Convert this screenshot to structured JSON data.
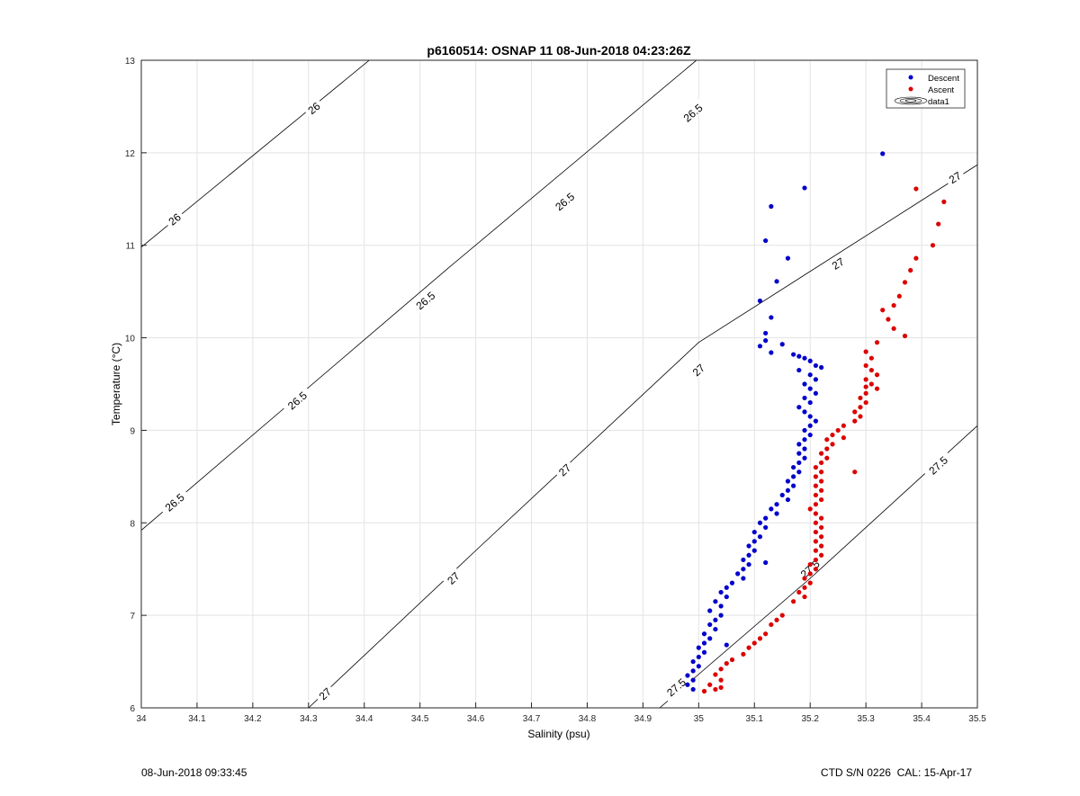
{
  "chart_data": {
    "type": "scatter",
    "title": "p6160514: OSNAP 11 08-Jun-2018 04:23:26Z",
    "xlabel": "Salinity (psu)",
    "ylabel": "Temperature (°C)",
    "xlim": [
      34,
      35.5
    ],
    "ylim": [
      6,
      13
    ],
    "xticks": [
      "34",
      "34.1",
      "34.2",
      "34.3",
      "34.4",
      "34.5",
      "34.6",
      "34.7",
      "34.8",
      "34.9",
      "35",
      "35.1",
      "35.2",
      "35.3",
      "35.4",
      "35.5"
    ],
    "yticks": [
      "6",
      "7",
      "8",
      "9",
      "10",
      "11",
      "12",
      "13"
    ],
    "grid": true,
    "legend_position": "top-right",
    "legend": [
      "Descent",
      "Ascent",
      "data1"
    ],
    "colors": {
      "descent": "#0000cc",
      "ascent": "#dd0000",
      "contour": "#000000",
      "grid": "#e3e3e3"
    },
    "contours": [
      {
        "label": "26",
        "points": [
          [
            34.0,
            10.98
          ],
          [
            34.5,
            13.45
          ]
        ],
        "label_positions": [
          [
            34.06,
            11.28
          ],
          [
            34.31,
            12.48
          ]
        ]
      },
      {
        "label": "26.5",
        "points": [
          [
            34.0,
            7.92
          ],
          [
            34.55,
            10.75
          ],
          [
            35.0,
            13.02
          ]
        ],
        "label_positions": [
          [
            34.06,
            8.22
          ],
          [
            34.28,
            9.32
          ],
          [
            34.51,
            10.4
          ],
          [
            34.76,
            11.47
          ],
          [
            34.99,
            12.43
          ]
        ]
      },
      {
        "label": "27",
        "points": [
          [
            34.3,
            6.0
          ],
          [
            34.6,
            7.7
          ],
          [
            35.0,
            9.95
          ],
          [
            35.5,
            11.87
          ]
        ],
        "label_positions": [
          [
            34.33,
            6.15
          ],
          [
            34.56,
            7.4
          ],
          [
            34.76,
            8.57
          ],
          [
            35.0,
            9.65
          ],
          [
            35.25,
            10.8
          ],
          [
            35.46,
            11.73
          ]
        ]
      },
      {
        "label": "27.5",
        "points": [
          [
            34.93,
            6.0
          ],
          [
            35.2,
            7.4
          ],
          [
            35.5,
            9.05
          ]
        ],
        "label_positions": [
          [
            34.96,
            6.22
          ],
          [
            35.2,
            7.5
          ],
          [
            35.43,
            8.62
          ]
        ]
      }
    ],
    "series": [
      {
        "name": "Descent",
        "points": [
          [
            35.33,
            11.99
          ],
          [
            35.19,
            11.62
          ],
          [
            35.13,
            11.42
          ],
          [
            35.12,
            11.05
          ],
          [
            35.16,
            10.86
          ],
          [
            35.14,
            10.61
          ],
          [
            35.11,
            10.4
          ],
          [
            35.13,
            10.22
          ],
          [
            35.12,
            10.05
          ],
          [
            35.12,
            9.97
          ],
          [
            35.11,
            9.91
          ],
          [
            35.13,
            9.84
          ],
          [
            35.15,
            9.93
          ],
          [
            35.17,
            9.82
          ],
          [
            35.18,
            9.8
          ],
          [
            35.19,
            9.78
          ],
          [
            35.2,
            9.75
          ],
          [
            35.21,
            9.7
          ],
          [
            35.22,
            9.68
          ],
          [
            35.18,
            9.65
          ],
          [
            35.2,
            9.6
          ],
          [
            35.21,
            9.55
          ],
          [
            35.19,
            9.5
          ],
          [
            35.2,
            9.45
          ],
          [
            35.21,
            9.4
          ],
          [
            35.19,
            9.35
          ],
          [
            35.2,
            9.3
          ],
          [
            35.18,
            9.25
          ],
          [
            35.19,
            9.2
          ],
          [
            35.2,
            9.15
          ],
          [
            35.21,
            9.1
          ],
          [
            35.2,
            9.05
          ],
          [
            35.19,
            9.0
          ],
          [
            35.2,
            8.95
          ],
          [
            35.19,
            8.9
          ],
          [
            35.18,
            8.85
          ],
          [
            35.19,
            8.8
          ],
          [
            35.18,
            8.75
          ],
          [
            35.19,
            8.7
          ],
          [
            35.18,
            8.65
          ],
          [
            35.17,
            8.6
          ],
          [
            35.18,
            8.55
          ],
          [
            35.17,
            8.5
          ],
          [
            35.16,
            8.45
          ],
          [
            35.17,
            8.4
          ],
          [
            35.16,
            8.35
          ],
          [
            35.15,
            8.3
          ],
          [
            35.16,
            8.25
          ],
          [
            35.14,
            8.2
          ],
          [
            35.13,
            8.15
          ],
          [
            35.14,
            8.1
          ],
          [
            35.12,
            8.05
          ],
          [
            35.11,
            8.0
          ],
          [
            35.12,
            7.95
          ],
          [
            35.1,
            7.9
          ],
          [
            35.11,
            7.85
          ],
          [
            35.1,
            7.8
          ],
          [
            35.09,
            7.75
          ],
          [
            35.1,
            7.7
          ],
          [
            35.09,
            7.65
          ],
          [
            35.08,
            7.6
          ],
          [
            35.12,
            7.57
          ],
          [
            35.09,
            7.55
          ],
          [
            35.08,
            7.5
          ],
          [
            35.07,
            7.45
          ],
          [
            35.08,
            7.4
          ],
          [
            35.06,
            7.35
          ],
          [
            35.05,
            7.3
          ],
          [
            35.04,
            7.25
          ],
          [
            35.05,
            7.2
          ],
          [
            35.03,
            7.15
          ],
          [
            35.04,
            7.1
          ],
          [
            35.02,
            7.05
          ],
          [
            35.04,
            7.0
          ],
          [
            35.03,
            6.95
          ],
          [
            35.02,
            6.9
          ],
          [
            35.03,
            6.85
          ],
          [
            35.01,
            6.8
          ],
          [
            35.02,
            6.75
          ],
          [
            35.01,
            6.7
          ],
          [
            35.05,
            6.68
          ],
          [
            35.0,
            6.65
          ],
          [
            35.01,
            6.6
          ],
          [
            35.0,
            6.55
          ],
          [
            34.99,
            6.5
          ],
          [
            35.0,
            6.45
          ],
          [
            34.99,
            6.4
          ],
          [
            34.98,
            6.35
          ],
          [
            34.99,
            6.3
          ],
          [
            34.98,
            6.25
          ],
          [
            34.99,
            6.2
          ]
        ]
      },
      {
        "name": "Ascent",
        "points": [
          [
            35.39,
            11.61
          ],
          [
            35.44,
            11.47
          ],
          [
            35.43,
            11.23
          ],
          [
            35.42,
            11.0
          ],
          [
            35.39,
            10.86
          ],
          [
            35.38,
            10.73
          ],
          [
            35.37,
            10.6
          ],
          [
            35.36,
            10.45
          ],
          [
            35.35,
            10.35
          ],
          [
            35.33,
            10.3
          ],
          [
            35.34,
            10.2
          ],
          [
            35.35,
            10.1
          ],
          [
            35.37,
            10.02
          ],
          [
            35.32,
            9.95
          ],
          [
            35.3,
            9.85
          ],
          [
            35.31,
            9.78
          ],
          [
            35.3,
            9.7
          ],
          [
            35.31,
            9.65
          ],
          [
            35.32,
            9.6
          ],
          [
            35.3,
            9.55
          ],
          [
            35.31,
            9.5
          ],
          [
            35.32,
            9.45
          ],
          [
            35.3,
            9.4
          ],
          [
            35.29,
            9.35
          ],
          [
            35.3,
            9.3
          ],
          [
            35.29,
            9.25
          ],
          [
            35.28,
            9.2
          ],
          [
            35.29,
            9.15
          ],
          [
            35.28,
            9.1
          ],
          [
            35.26,
            9.05
          ],
          [
            35.25,
            9.0
          ],
          [
            35.24,
            8.95
          ],
          [
            35.23,
            8.9
          ],
          [
            35.24,
            8.85
          ],
          [
            35.23,
            8.8
          ],
          [
            35.22,
            8.75
          ],
          [
            35.23,
            8.7
          ],
          [
            35.22,
            8.65
          ],
          [
            35.21,
            8.6
          ],
          [
            35.22,
            8.55
          ],
          [
            35.21,
            8.5
          ],
          [
            35.22,
            8.45
          ],
          [
            35.21,
            8.4
          ],
          [
            35.22,
            8.35
          ],
          [
            35.21,
            8.3
          ],
          [
            35.22,
            8.25
          ],
          [
            35.21,
            8.2
          ],
          [
            35.2,
            8.15
          ],
          [
            35.21,
            8.1
          ],
          [
            35.22,
            8.05
          ],
          [
            35.21,
            8.0
          ],
          [
            35.22,
            7.95
          ],
          [
            35.21,
            7.9
          ],
          [
            35.22,
            7.85
          ],
          [
            35.21,
            7.8
          ],
          [
            35.22,
            7.75
          ],
          [
            35.21,
            7.7
          ],
          [
            35.22,
            7.65
          ],
          [
            35.21,
            7.6
          ],
          [
            35.2,
            7.55
          ],
          [
            35.21,
            7.5
          ],
          [
            35.2,
            7.45
          ],
          [
            35.19,
            7.4
          ],
          [
            35.2,
            7.35
          ],
          [
            35.19,
            7.3
          ],
          [
            35.18,
            7.25
          ],
          [
            35.19,
            7.2
          ],
          [
            35.17,
            7.15
          ],
          [
            35.15,
            7.0
          ],
          [
            35.14,
            6.95
          ],
          [
            35.13,
            6.9
          ],
          [
            35.12,
            6.8
          ],
          [
            35.11,
            6.75
          ],
          [
            35.1,
            6.7
          ],
          [
            35.09,
            6.65
          ],
          [
            35.08,
            6.58
          ],
          [
            35.06,
            6.52
          ],
          [
            35.05,
            6.48
          ],
          [
            35.04,
            6.42
          ],
          [
            35.03,
            6.36
          ],
          [
            35.04,
            6.3
          ],
          [
            35.02,
            6.25
          ],
          [
            35.03,
            6.2
          ],
          [
            35.01,
            6.18
          ],
          [
            35.04,
            6.22
          ],
          [
            35.28,
            8.55
          ],
          [
            35.3,
            9.47
          ],
          [
            35.26,
            8.92
          ]
        ]
      }
    ]
  },
  "footer": {
    "timestamp": "08-Jun-2018 09:33:45",
    "instrument": "CTD S/N 0226  CAL: 15-Apr-17"
  }
}
